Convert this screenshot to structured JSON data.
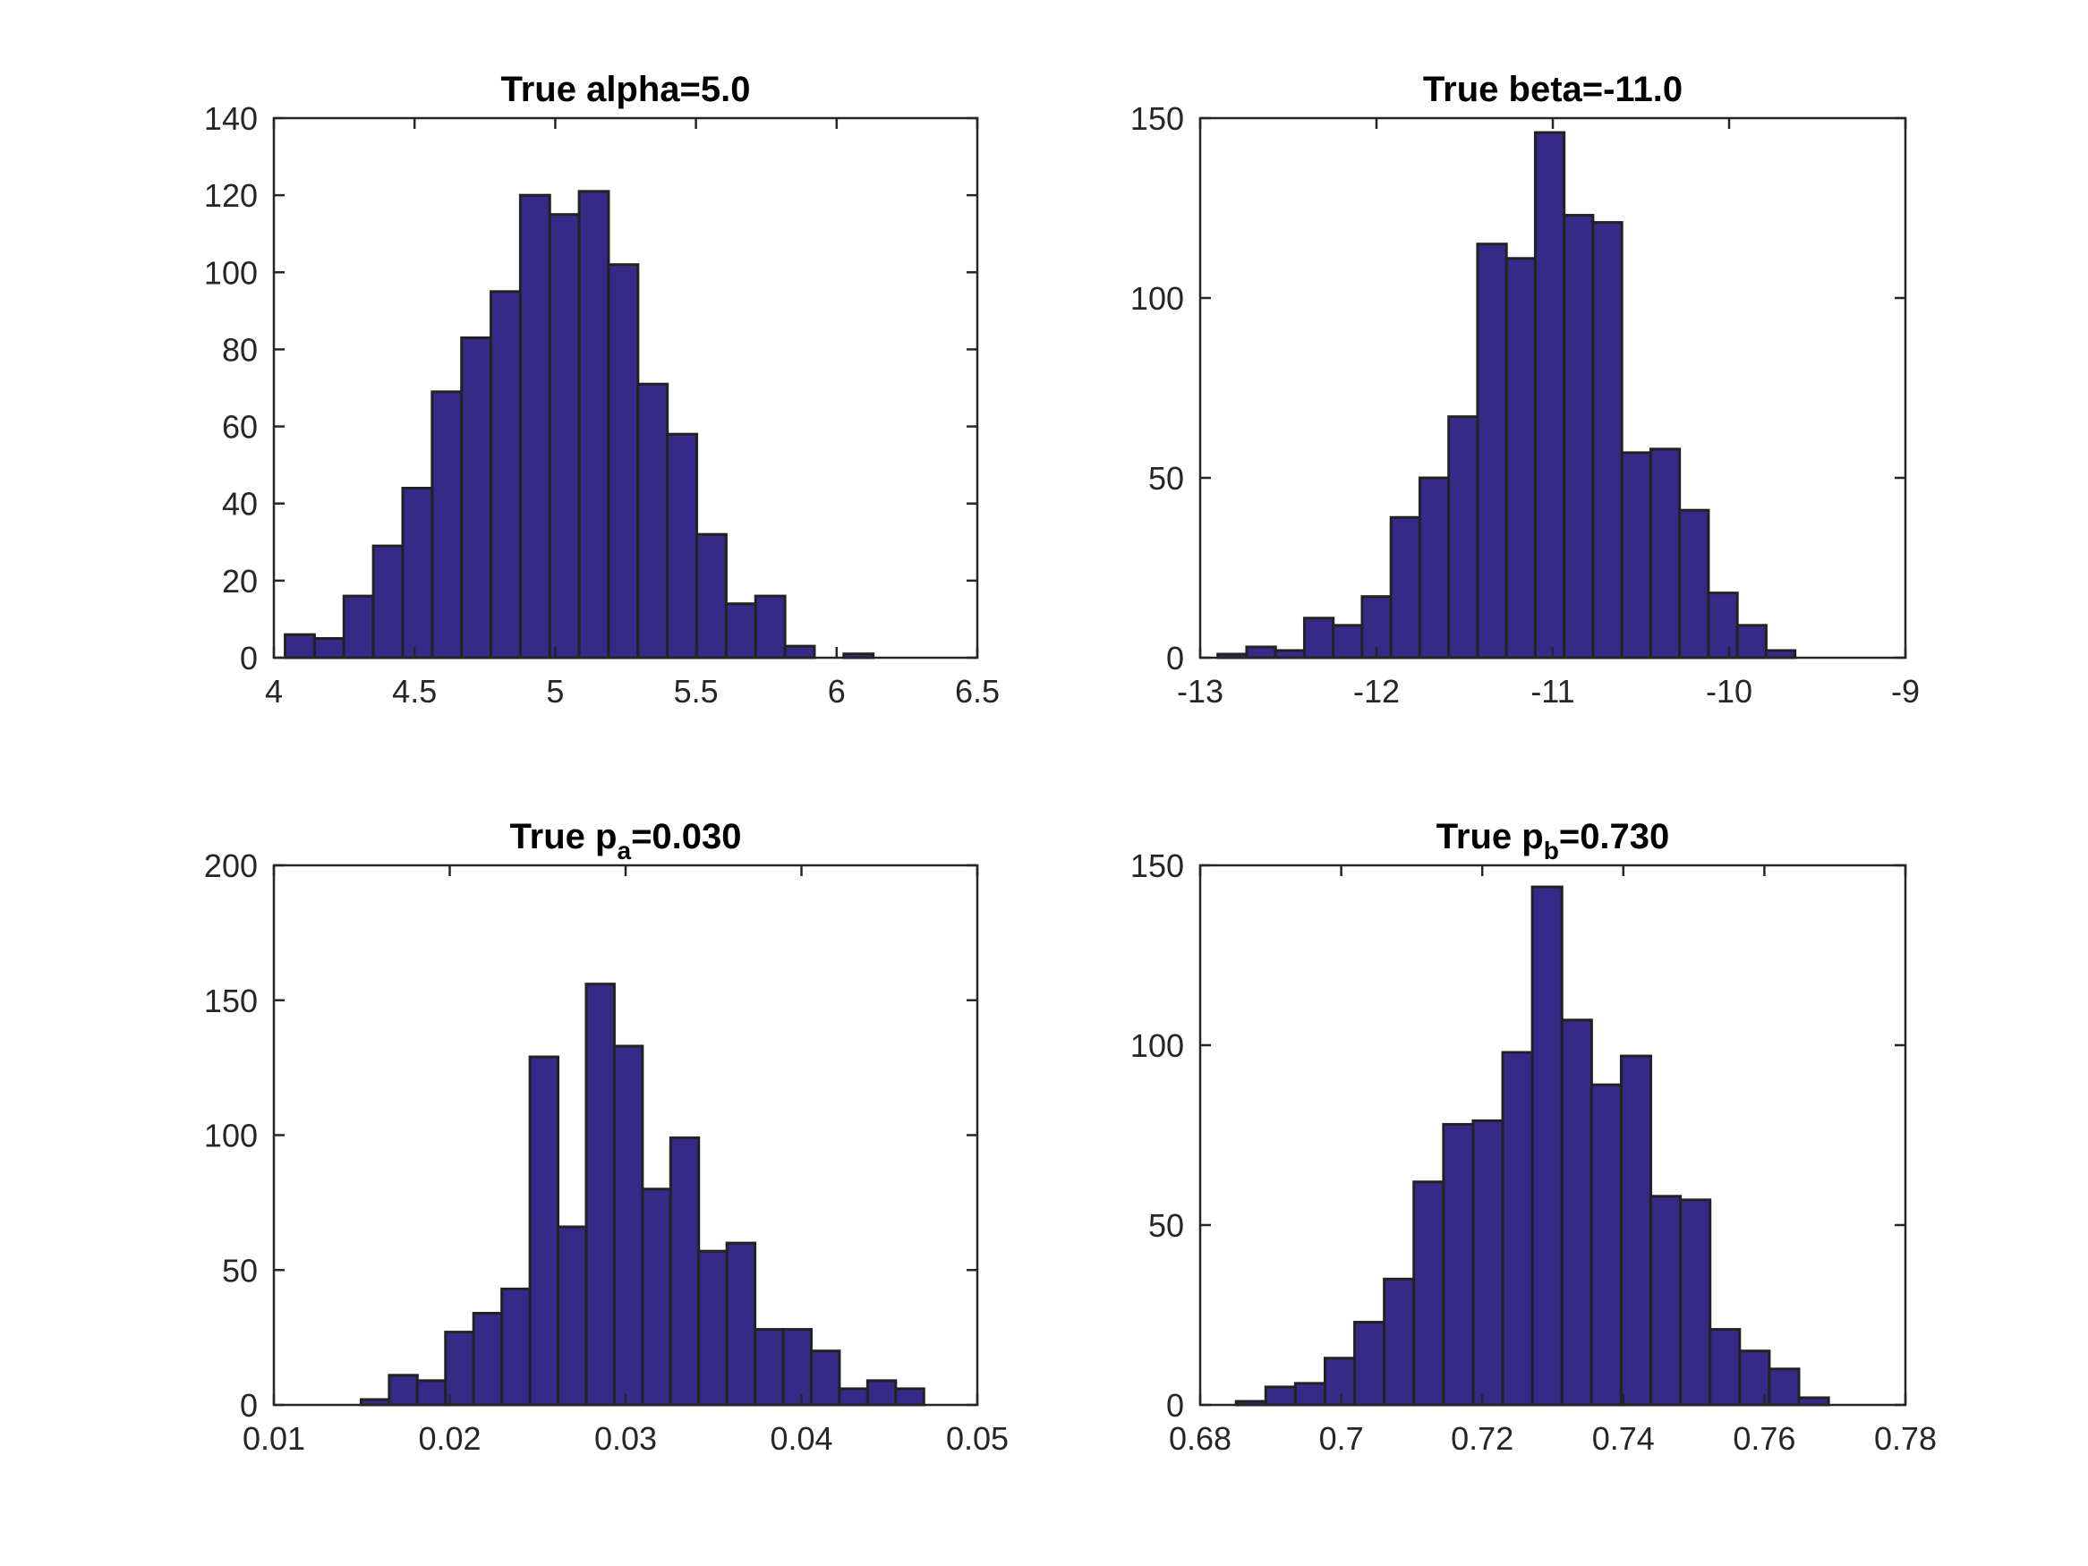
{
  "colors": {
    "bar_fill": "#352A87",
    "bar_edge": "#222222",
    "axis": "#262626"
  },
  "chart_data": [
    {
      "type": "bar",
      "title": {
        "main": "True alpha=5.0",
        "sub": "",
        "rest": ""
      },
      "xlabel": "",
      "ylabel": "",
      "xlim": [
        4,
        6.5
      ],
      "ylim": [
        0,
        140
      ],
      "xticks": [
        "4",
        "4.5",
        "5",
        "5.5",
        "6",
        "6.5"
      ],
      "yticks": [
        "0",
        "20",
        "40",
        "60",
        "80",
        "100",
        "120",
        "140"
      ],
      "bin_start": 4.04,
      "bin_width": 0.1045,
      "values": [
        6,
        5,
        16,
        29,
        44,
        69,
        83,
        95,
        120,
        115,
        121,
        102,
        71,
        58,
        32,
        14,
        16,
        3,
        0,
        1
      ],
      "grid": false
    },
    {
      "type": "bar",
      "title": {
        "main": "True beta=-11.0",
        "sub": "",
        "rest": ""
      },
      "xlabel": "",
      "ylabel": "",
      "xlim": [
        -13,
        -9
      ],
      "ylim": [
        0,
        150
      ],
      "xticks": [
        "-13",
        "-12",
        "-11",
        "-10",
        "-9"
      ],
      "yticks": [
        "0",
        "50",
        "100",
        "150"
      ],
      "bin_start": -12.9,
      "bin_width": 0.1637,
      "values": [
        1,
        3,
        2,
        11,
        9,
        17,
        39,
        50,
        67,
        115,
        111,
        146,
        123,
        121,
        57,
        58,
        41,
        18,
        9,
        2
      ],
      "grid": false
    },
    {
      "type": "bar",
      "title": {
        "main": "True p",
        "sub": "a",
        "rest": "=0.030"
      },
      "xlabel": "",
      "ylabel": "",
      "xlim": [
        0.01,
        0.05
      ],
      "ylim": [
        0,
        200
      ],
      "xticks": [
        "0.01",
        "0.02",
        "0.03",
        "0.04",
        "0.05"
      ],
      "yticks": [
        "0",
        "50",
        "100",
        "150",
        "200"
      ],
      "bin_start": 0.01496,
      "bin_width": 0.0016,
      "values": [
        2,
        11,
        9,
        27,
        34,
        43,
        129,
        66,
        156,
        133,
        80,
        99,
        57,
        60,
        28,
        28,
        20,
        6,
        9,
        6
      ],
      "grid": false
    },
    {
      "type": "bar",
      "title": {
        "main": "True p",
        "sub": "b",
        "rest": "=0.730"
      },
      "xlabel": "",
      "ylabel": "",
      "xlim": [
        0.68,
        0.78
      ],
      "ylim": [
        0,
        150
      ],
      "xticks": [
        "0.68",
        "0.7",
        "0.72",
        "0.74",
        "0.76",
        "0.78"
      ],
      "yticks": [
        "0",
        "50",
        "100",
        "150"
      ],
      "bin_start": 0.6851,
      "bin_width": 0.0042,
      "values": [
        1,
        5,
        6,
        13,
        23,
        35,
        62,
        78,
        79,
        98,
        144,
        107,
        89,
        97,
        58,
        57,
        21,
        15,
        10,
        2
      ],
      "grid": false
    }
  ]
}
